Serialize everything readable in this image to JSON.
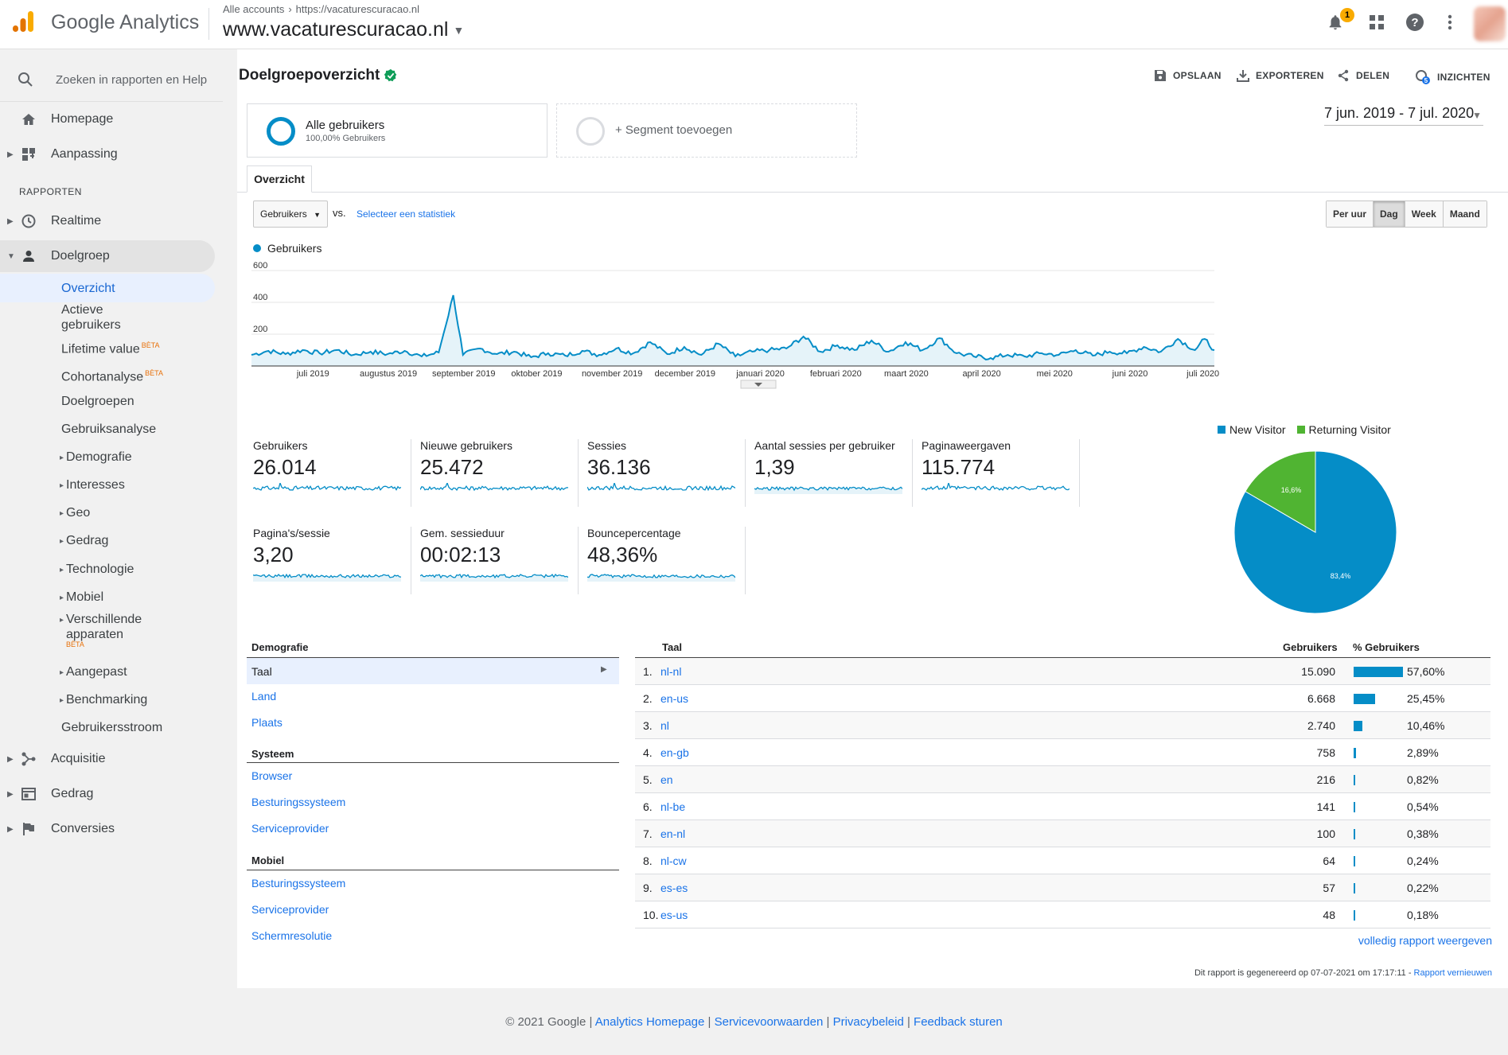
{
  "app": {
    "brand": "Google Analytics",
    "breadcrumb": [
      "Alle accounts",
      "https://vacaturescuracao.nl"
    ],
    "property": "www.vacaturescuracao.nl",
    "notification_count": "1"
  },
  "sidebar": {
    "search_placeholder": "Zoeken in rapporten en Help",
    "items_top": [
      {
        "label": "Homepage",
        "icon": "home-icon"
      },
      {
        "label": "Aanpassing",
        "icon": "dashboard-icon"
      }
    ],
    "section_label": "RAPPORTEN",
    "items": [
      {
        "label": "Realtime",
        "icon": "clock-icon"
      },
      {
        "label": "Doelgroep",
        "icon": "person-icon"
      }
    ],
    "doelgroep_sub": [
      "Overzicht",
      "Actieve gebruikers",
      "Lifetime value",
      "Cohortanalyse",
      "Doelgroepen",
      "Gebruiksanalyse",
      "Demografie",
      "Interesses",
      "Geo",
      "Gedrag",
      "Technologie",
      "Mobiel",
      "Verschillende apparaten",
      "Aangepast",
      "Benchmarking",
      "Gebruikersstroom"
    ],
    "beta_label": "BÈTA",
    "items_bottom": [
      {
        "label": "Acquisitie",
        "icon": "acquisition-icon"
      },
      {
        "label": "Gedrag",
        "icon": "behavior-icon"
      },
      {
        "label": "Conversies",
        "icon": "flag-icon"
      }
    ]
  },
  "header": {
    "title": "Doelgroepoverzicht",
    "actions": [
      "OPSLAAN",
      "EXPORTEREN",
      "DELEN",
      "INZICHTEN"
    ],
    "insights_badge": "5",
    "date_range": "7 jun. 2019 - 7 jul. 2020"
  },
  "segments": {
    "active_name": "Alle gebruikers",
    "active_sub": "100,00% Gebruikers",
    "add_label": "+ Segment toevoegen"
  },
  "tab": "Overzicht",
  "controls": {
    "metric": "Gebruikers",
    "vs": "vs.",
    "select_stat": "Selecteer een statistiek",
    "granularity": [
      "Per uur",
      "Dag",
      "Week",
      "Maand"
    ],
    "granularity_selected": "Dag"
  },
  "chart_data": {
    "type": "area",
    "series": [
      {
        "name": "Gebruikers",
        "color": "#058dc7"
      }
    ],
    "yticks": [
      "600",
      "400",
      "200"
    ],
    "ylim": [
      0,
      600
    ],
    "xticks": [
      "juli 2019",
      "augustus 2019",
      "september 2019",
      "oktober 2019",
      "november 2019",
      "december 2019",
      "januari 2020",
      "februari 2020",
      "maart 2020",
      "april 2020",
      "mei 2020",
      "juni 2020",
      "juli 2020"
    ],
    "x_range": [
      "2019-06-07",
      "2020-07-07"
    ],
    "points": [
      [
        "2019-06-07",
        70
      ],
      [
        "2019-06-14",
        95
      ],
      [
        "2019-06-21",
        75
      ],
      [
        "2019-06-28",
        100
      ],
      [
        "2019-07-05",
        80
      ],
      [
        "2019-07-12",
        100
      ],
      [
        "2019-07-19",
        70
      ],
      [
        "2019-07-26",
        90
      ],
      [
        "2019-08-02",
        75
      ],
      [
        "2019-08-09",
        95
      ],
      [
        "2019-08-16",
        60
      ],
      [
        "2019-08-23",
        85
      ],
      [
        "2019-08-29",
        445
      ],
      [
        "2019-09-02",
        70
      ],
      [
        "2019-09-09",
        110
      ],
      [
        "2019-09-16",
        75
      ],
      [
        "2019-09-23",
        90
      ],
      [
        "2019-09-30",
        55
      ],
      [
        "2019-10-07",
        80
      ],
      [
        "2019-10-14",
        65
      ],
      [
        "2019-10-21",
        95
      ],
      [
        "2019-10-28",
        70
      ],
      [
        "2019-11-04",
        110
      ],
      [
        "2019-11-11",
        80
      ],
      [
        "2019-11-18",
        150
      ],
      [
        "2019-11-25",
        75
      ],
      [
        "2019-12-02",
        120
      ],
      [
        "2019-12-09",
        70
      ],
      [
        "2019-12-16",
        140
      ],
      [
        "2019-12-23",
        60
      ],
      [
        "2019-12-30",
        90
      ],
      [
        "2020-01-06",
        100
      ],
      [
        "2020-01-13",
        110
      ],
      [
        "2020-01-20",
        185
      ],
      [
        "2020-01-27",
        90
      ],
      [
        "2020-02-03",
        130
      ],
      [
        "2020-02-10",
        100
      ],
      [
        "2020-02-17",
        160
      ],
      [
        "2020-02-24",
        90
      ],
      [
        "2020-03-02",
        150
      ],
      [
        "2020-03-09",
        100
      ],
      [
        "2020-03-16",
        175
      ],
      [
        "2020-03-23",
        80
      ],
      [
        "2020-03-30",
        60
      ],
      [
        "2020-04-06",
        50
      ],
      [
        "2020-04-13",
        70
      ],
      [
        "2020-04-20",
        60
      ],
      [
        "2020-04-27",
        80
      ],
      [
        "2020-05-04",
        70
      ],
      [
        "2020-05-11",
        100
      ],
      [
        "2020-05-18",
        65
      ],
      [
        "2020-05-25",
        90
      ],
      [
        "2020-06-01",
        80
      ],
      [
        "2020-06-08",
        120
      ],
      [
        "2020-06-15",
        90
      ],
      [
        "2020-06-22",
        170
      ],
      [
        "2020-06-29",
        100
      ],
      [
        "2020-07-03",
        170
      ],
      [
        "2020-07-07",
        100
      ]
    ]
  },
  "scorecards": [
    {
      "label": "Gebruikers",
      "value": "26.014"
    },
    {
      "label": "Nieuwe gebruikers",
      "value": "25.472"
    },
    {
      "label": "Sessies",
      "value": "36.136"
    },
    {
      "label": "Aantal sessies per gebruiker",
      "value": "1,39"
    },
    {
      "label": "Paginaweergaven",
      "value": "115.774"
    },
    {
      "label": "Pagina's/sessie",
      "value": "3,20"
    },
    {
      "label": "Gem. sessieduur",
      "value": "00:02:13"
    },
    {
      "label": "Bouncepercentage",
      "value": "48,36%"
    }
  ],
  "pie": {
    "legend": [
      {
        "name": "New Visitor",
        "color": "#058dc7"
      },
      {
        "name": "Returning Visitor",
        "color": "#50b432"
      }
    ],
    "slices": [
      {
        "name": "New Visitor",
        "value": 83.4,
        "label": "83,4%"
      },
      {
        "name": "Returning Visitor",
        "value": 16.6,
        "label": "16,6%"
      }
    ]
  },
  "demographics": {
    "sections": [
      {
        "title": "Demografie",
        "items": [
          "Taal",
          "Land",
          "Plaats"
        ]
      },
      {
        "title": "Systeem",
        "items": [
          "Browser",
          "Besturingssysteem",
          "Serviceprovider"
        ]
      },
      {
        "title": "Mobiel",
        "items": [
          "Besturingssysteem",
          "Serviceprovider",
          "Schermresolutie"
        ]
      }
    ],
    "selected": "Taal"
  },
  "language_table": {
    "headers": [
      "Taal",
      "Gebruikers",
      "% Gebruikers"
    ],
    "rows": [
      {
        "n": "1.",
        "key": "nl-nl",
        "users": "15.090",
        "pct": "57,60%",
        "share": 57.6
      },
      {
        "n": "2.",
        "key": "en-us",
        "users": "6.668",
        "pct": "25,45%",
        "share": 25.45
      },
      {
        "n": "3.",
        "key": "nl",
        "users": "2.740",
        "pct": "10,46%",
        "share": 10.46
      },
      {
        "n": "4.",
        "key": "en-gb",
        "users": "758",
        "pct": "2,89%",
        "share": 2.89
      },
      {
        "n": "5.",
        "key": "en",
        "users": "216",
        "pct": "0,82%",
        "share": 0.82
      },
      {
        "n": "6.",
        "key": "nl-be",
        "users": "141",
        "pct": "0,54%",
        "share": 0.54
      },
      {
        "n": "7.",
        "key": "en-nl",
        "users": "100",
        "pct": "0,38%",
        "share": 0.38
      },
      {
        "n": "8.",
        "key": "nl-cw",
        "users": "64",
        "pct": "0,24%",
        "share": 0.24
      },
      {
        "n": "9.",
        "key": "es-es",
        "users": "57",
        "pct": "0,22%",
        "share": 0.22
      },
      {
        "n": "10.",
        "key": "es-us",
        "users": "48",
        "pct": "0,18%",
        "share": 0.18
      }
    ],
    "full_report": "volledig rapport weergeven",
    "generated": "Dit rapport is gegenereerd op 07-07-2021 om 17:17:11 -",
    "refresh": "Rapport vernieuwen"
  },
  "footer": {
    "copyright": "© 2021 Google",
    "links": [
      "Analytics Homepage",
      "Servicevoorwaarden",
      "Privacybeleid",
      "Feedback sturen"
    ]
  }
}
